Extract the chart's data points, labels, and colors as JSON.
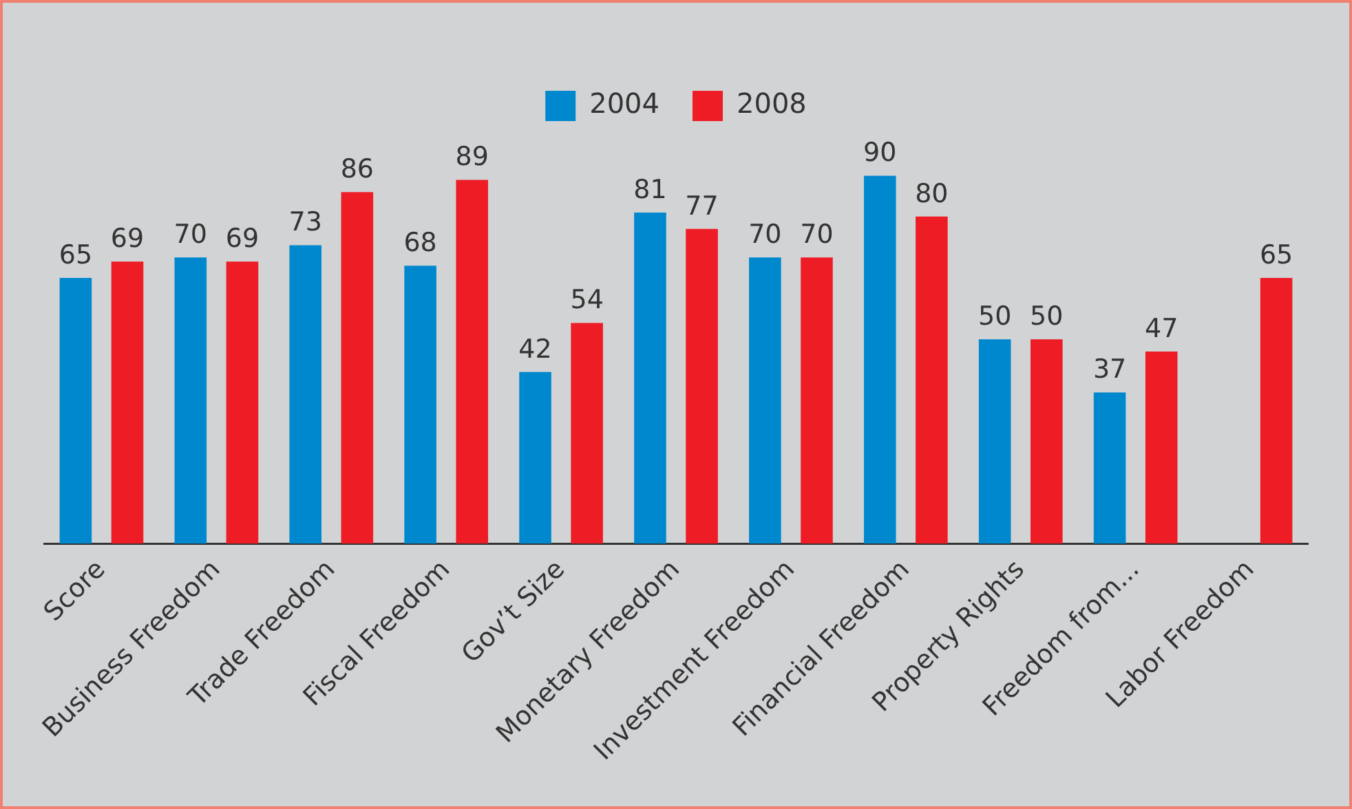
{
  "chart_data": {
    "type": "bar",
    "categories": [
      "Score",
      "Business Freedom",
      "Trade Freedom",
      "Fiscal Freedom",
      "Gov’t Size",
      "Monetary Freedom",
      "Investment Freedom",
      "Financial Freedom",
      "Property Rights",
      "Freedom from...",
      "Labor Freedom"
    ],
    "series": [
      {
        "name": "2004",
        "color": "#0088cf",
        "values": [
          65,
          70,
          73,
          68,
          42,
          81,
          70,
          90,
          50,
          37,
          null
        ]
      },
      {
        "name": "2008",
        "color": "#ee1c25",
        "values": [
          69,
          69,
          86,
          89,
          54,
          77,
          70,
          80,
          50,
          47,
          65
        ]
      }
    ],
    "data_labels": true,
    "legend": "top",
    "grid": false
  }
}
